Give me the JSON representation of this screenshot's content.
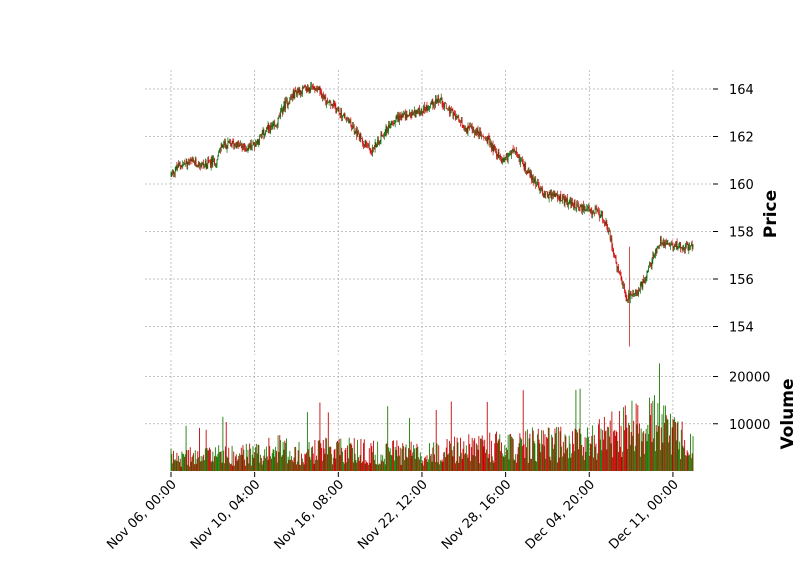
{
  "chart_data": {
    "type": "candlestick",
    "title": "",
    "style": {
      "up_color": "#006400",
      "down_color": "#cc0000",
      "volume_up_color": "#1a7a00",
      "volume_down_color": "#c40000"
    },
    "price_panel": {
      "ylabel": "Price",
      "ylim": [
        152.8,
        164.8
      ],
      "ticks": [
        154,
        156,
        158,
        160,
        162,
        164
      ],
      "tick_labels": [
        "154",
        "156",
        "158",
        "160",
        "162",
        "164"
      ],
      "y_axis_side": "right",
      "grid": true
    },
    "volume_panel": {
      "ylabel": "Volume",
      "ylim": [
        0,
        23500
      ],
      "ticks": [
        10000,
        20000
      ],
      "tick_labels": [
        "10000",
        "20000"
      ],
      "y_axis_side": "right",
      "grid": true
    },
    "x_axis": {
      "tick_labels": [
        "Nov 06, 00:00",
        "Nov 10, 04:00",
        "Nov 16, 08:00",
        "Nov 22, 12:00",
        "Nov 28, 16:00",
        "Dec 04, 20:00",
        "Dec 11, 00:00"
      ],
      "tick_bar_index": [
        0,
        100,
        200,
        300,
        400,
        500,
        600
      ],
      "rotation": 45
    },
    "n_bars": 625,
    "close_path": [
      [
        0,
        160.4
      ],
      [
        10,
        160.8
      ],
      [
        25,
        160.9
      ],
      [
        40,
        160.8
      ],
      [
        55,
        161.0
      ],
      [
        60,
        161.6
      ],
      [
        75,
        161.7
      ],
      [
        90,
        161.5
      ],
      [
        100,
        161.7
      ],
      [
        115,
        162.3
      ],
      [
        125,
        162.4
      ],
      [
        135,
        163.3
      ],
      [
        150,
        163.9
      ],
      [
        165,
        164.0
      ],
      [
        175,
        164.1
      ],
      [
        185,
        163.5
      ],
      [
        200,
        163.1
      ],
      [
        210,
        162.7
      ],
      [
        225,
        162.0
      ],
      [
        240,
        161.4
      ],
      [
        255,
        162.2
      ],
      [
        270,
        162.8
      ],
      [
        285,
        162.9
      ],
      [
        300,
        163.1
      ],
      [
        320,
        163.6
      ],
      [
        335,
        163.0
      ],
      [
        350,
        162.4
      ],
      [
        365,
        162.2
      ],
      [
        380,
        161.8
      ],
      [
        395,
        161.0
      ],
      [
        410,
        161.4
      ],
      [
        425,
        160.6
      ],
      [
        445,
        159.6
      ],
      [
        460,
        159.5
      ],
      [
        480,
        159.1
      ],
      [
        500,
        158.9
      ],
      [
        515,
        158.7
      ],
      [
        525,
        157.8
      ],
      [
        535,
        156.2
      ],
      [
        545,
        155.2
      ],
      [
        555,
        155.3
      ],
      [
        565,
        155.9
      ],
      [
        575,
        156.8
      ],
      [
        585,
        157.6
      ],
      [
        595,
        157.5
      ],
      [
        624,
        157.3
      ]
    ],
    "volume_envelope": [
      [
        0,
        3500
      ],
      [
        100,
        4500
      ],
      [
        130,
        6000
      ],
      [
        150,
        5000
      ],
      [
        200,
        5500
      ],
      [
        250,
        5000
      ],
      [
        300,
        4500
      ],
      [
        350,
        6000
      ],
      [
        400,
        6500
      ],
      [
        450,
        7000
      ],
      [
        500,
        7500
      ],
      [
        550,
        11000
      ],
      [
        580,
        12000
      ],
      [
        624,
        6000
      ]
    ]
  }
}
